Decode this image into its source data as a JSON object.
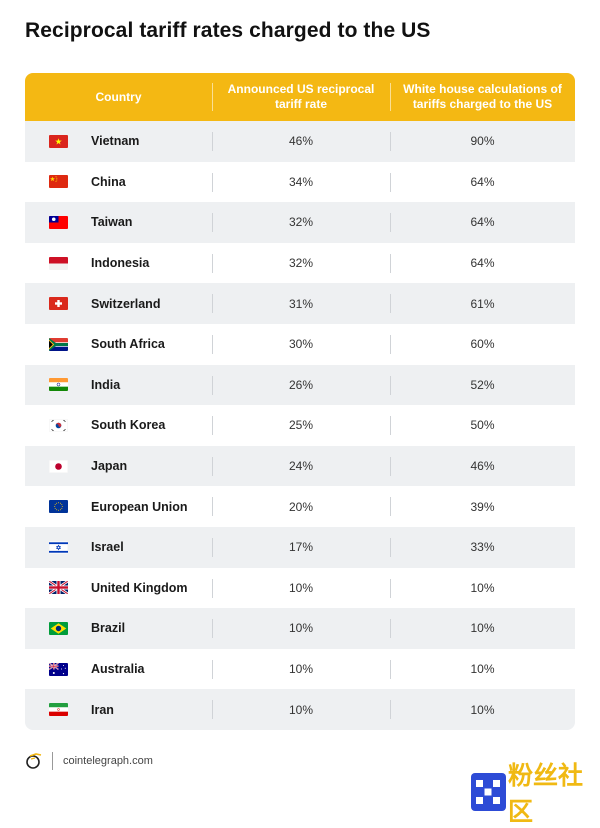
{
  "title": "Reciprocal tariff rates charged to the US",
  "table": {
    "headers": {
      "country": "Country",
      "announced": "Announced US reciprocal tariff rate",
      "whitehouse": "White house calculations of tariffs charged to the US"
    },
    "rows": [
      {
        "country": "Vietnam",
        "flag": "vietnam-flag-icon",
        "announced": "46%",
        "whitehouse": "90%"
      },
      {
        "country": "China",
        "flag": "china-flag-icon",
        "announced": "34%",
        "whitehouse": "64%"
      },
      {
        "country": "Taiwan",
        "flag": "taiwan-flag-icon",
        "announced": "32%",
        "whitehouse": "64%"
      },
      {
        "country": "Indonesia",
        "flag": "indonesia-flag-icon",
        "announced": "32%",
        "whitehouse": "64%"
      },
      {
        "country": "Switzerland",
        "flag": "switzerland-flag-icon",
        "announced": "31%",
        "whitehouse": "61%"
      },
      {
        "country": "South Africa",
        "flag": "south-africa-flag-icon",
        "announced": "30%",
        "whitehouse": "60%"
      },
      {
        "country": "India",
        "flag": "india-flag-icon",
        "announced": "26%",
        "whitehouse": "52%"
      },
      {
        "country": "South Korea",
        "flag": "south-korea-flag-icon",
        "announced": "25%",
        "whitehouse": "50%"
      },
      {
        "country": "Japan",
        "flag": "japan-flag-icon",
        "announced": "24%",
        "whitehouse": "46%"
      },
      {
        "country": "European Union",
        "flag": "european-union-flag-icon",
        "announced": "20%",
        "whitehouse": "39%"
      },
      {
        "country": "Israel",
        "flag": "israel-flag-icon",
        "announced": "17%",
        "whitehouse": "33%"
      },
      {
        "country": "United Kingdom",
        "flag": "united-kingdom-flag-icon",
        "announced": "10%",
        "whitehouse": "10%"
      },
      {
        "country": "Brazil",
        "flag": "brazil-flag-icon",
        "announced": "10%",
        "whitehouse": "10%"
      },
      {
        "country": "Australia",
        "flag": "australia-flag-icon",
        "announced": "10%",
        "whitehouse": "10%"
      },
      {
        "country": "Iran",
        "flag": "iran-flag-icon",
        "announced": "10%",
        "whitehouse": "10%"
      }
    ]
  },
  "footer": {
    "site": "cointelegraph.com",
    "logo": "cointelegraph-logo-icon"
  },
  "watermark": {
    "text": "粉丝社区",
    "logo": "okx-logo-icon"
  },
  "colors": {
    "header_bg": "#f4b813",
    "row_alt_bg": "#eef0f2",
    "watermark_text": "#f0b913",
    "watermark_box": "#2d4bd6"
  }
}
